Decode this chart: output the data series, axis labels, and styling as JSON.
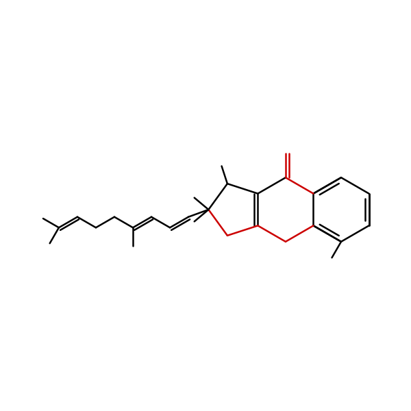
{
  "background": "#ffffff",
  "bond_color": "#000000",
  "red_color": "#cc0000",
  "line_width": 1.8,
  "figsize": [
    6.0,
    6.0
  ],
  "dpi": 100,
  "xlim": [
    0,
    10
  ],
  "ylim": [
    0,
    10
  ]
}
